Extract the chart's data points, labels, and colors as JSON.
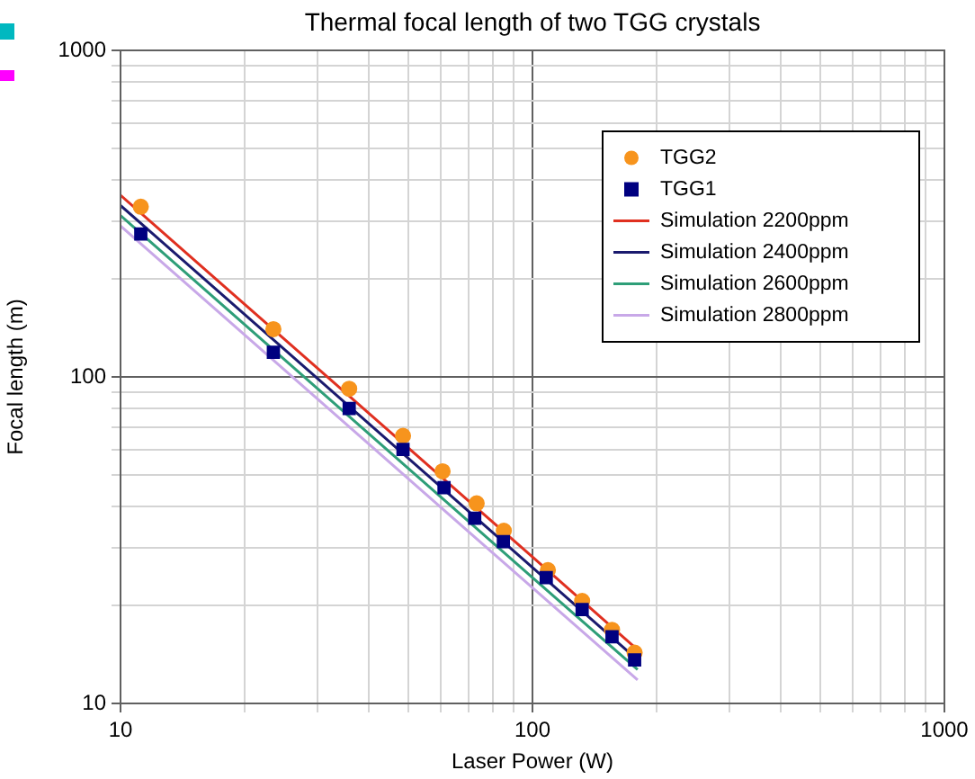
{
  "chart_data": {
    "type": "line",
    "title": "Thermal focal length of two TGG crystals",
    "xlabel": "Laser Power (W)",
    "ylabel": "Focal length (m)",
    "log": "xy",
    "xlim": [
      10,
      1000
    ],
    "ylim": [
      10,
      1000
    ],
    "xticks": [
      10,
      {
        "value": 20,
        "label": null
      },
      {
        "value": 30,
        "label": null
      },
      {
        "value": 40,
        "label": null
      },
      {
        "value": 50,
        "label": null
      },
      {
        "value": 60,
        "label": null
      },
      {
        "value": 70,
        "label": null
      },
      {
        "value": 80,
        "label": null
      },
      {
        "value": 90,
        "label": null
      },
      100,
      {
        "value": 200,
        "label": null
      },
      {
        "value": 300,
        "label": null
      },
      {
        "value": 400,
        "label": null
      },
      {
        "value": 500,
        "label": null
      },
      {
        "value": 600,
        "label": null
      },
      {
        "value": 700,
        "label": null
      },
      {
        "value": 800,
        "label": null
      },
      {
        "value": 900,
        "label": null
      },
      1000
    ],
    "yticks": [
      10,
      {
        "value": 20,
        "label": null
      },
      {
        "value": 30,
        "label": null
      },
      {
        "value": 40,
        "label": null
      },
      {
        "value": 50,
        "label": null
      },
      {
        "value": 60,
        "label": null
      },
      {
        "value": 70,
        "label": null
      },
      {
        "value": 80,
        "label": null
      },
      {
        "value": 90,
        "label": null
      },
      100,
      {
        "value": 200,
        "label": null
      },
      {
        "value": 300,
        "label": null
      },
      {
        "value": 400,
        "label": null
      },
      {
        "value": 500,
        "label": null
      },
      {
        "value": 600,
        "label": null
      },
      {
        "value": 700,
        "label": null
      },
      {
        "value": 800,
        "label": null
      },
      {
        "value": 900,
        "label": null
      },
      1000
    ],
    "grid": true,
    "legend": "top right",
    "series": [
      {
        "name": "TGG2",
        "type": "scatter",
        "marker": "circle",
        "color": "#f7941d",
        "x": [
          11.2,
          23.5,
          35.9,
          48.5,
          60.5,
          73.2,
          85.2,
          109,
          132,
          156,
          177
        ],
        "values": [
          332,
          140,
          92,
          66,
          51.4,
          41,
          33.8,
          25.6,
          20.6,
          16.8,
          14.3
        ]
      },
      {
        "name": "TGG1",
        "type": "scatter",
        "marker": "square",
        "color": "#000080",
        "x": [
          11.2,
          23.5,
          35.9,
          48.5,
          61,
          72.4,
          85,
          108,
          132,
          156,
          177
        ],
        "values": [
          274,
          119,
          80,
          60,
          45.8,
          36.9,
          31.3,
          24.3,
          19.4,
          16,
          13.6
        ]
      },
      {
        "name": "Simulation 2200ppm",
        "type": "line",
        "marker": "none",
        "color": "#e03020",
        "x": [
          10,
          100,
          180
        ],
        "values": [
          360,
          28.1,
          14.6
        ]
      },
      {
        "name": "Simulation 2400ppm",
        "type": "line",
        "marker": "none",
        "color": "#1a1a6e",
        "x": [
          10,
          100,
          180
        ],
        "values": [
          335,
          26.1,
          13.6
        ]
      },
      {
        "name": "Simulation 2600ppm",
        "type": "line",
        "marker": "none",
        "color": "#2e9e78",
        "x": [
          10,
          100,
          180
        ],
        "values": [
          312,
          24.3,
          12.7
        ]
      },
      {
        "name": "Simulation 2800ppm",
        "type": "line",
        "marker": "none",
        "color": "#c8a8e8",
        "x": [
          10,
          100,
          180
        ],
        "values": [
          290,
          22.6,
          11.8
        ]
      }
    ]
  }
}
